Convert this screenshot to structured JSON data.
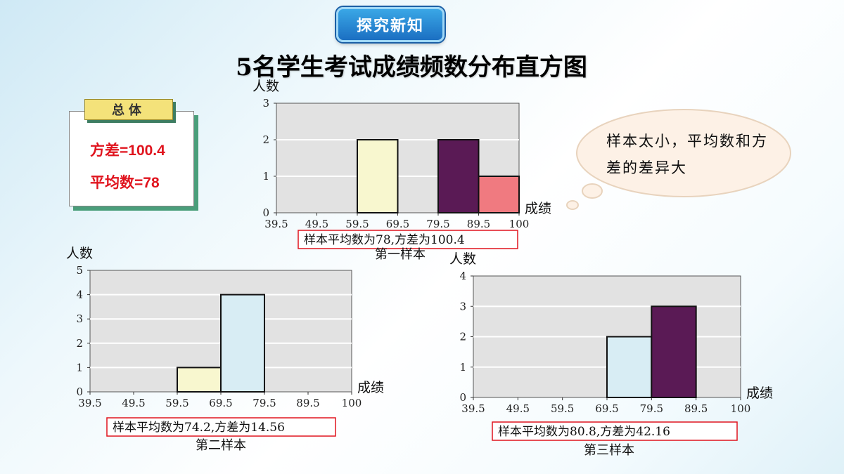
{
  "section_badge": "探究新知",
  "main_title": "5名学生考试成绩频数分布直方图",
  "population": {
    "tag": "总体",
    "variance": "方差=100.4",
    "mean": "平均数=78"
  },
  "bubble_text": "样本太小，平均数和方差的差异大",
  "colors": {
    "light_yellow": "#f8f7cf",
    "purple": "#5a1a55",
    "pink": "#f07a80",
    "light_blue": "#d8edf4",
    "grid_bg": "#e2e2e2",
    "stat_box_border": "#e0141e"
  },
  "chart_data": [
    {
      "type": "bar",
      "ylabel": "人数",
      "xlabel": "成绩",
      "x_ticks": [
        "39.5",
        "49.5",
        "59.5",
        "69.5",
        "79.5",
        "89.5",
        "100"
      ],
      "y_ticks": [
        "0",
        "1",
        "2",
        "3"
      ],
      "ylim": [
        0,
        3
      ],
      "values": [
        0,
        0,
        2,
        0,
        2,
        1
      ],
      "bar_colors": [
        "",
        "",
        "light_yellow",
        "",
        "purple",
        "pink"
      ],
      "stat_text": "样本平均数为78,方差为100.4",
      "caption": "第一样本"
    },
    {
      "type": "bar",
      "ylabel": "人数",
      "xlabel": "成绩",
      "x_ticks": [
        "39.5",
        "49.5",
        "59.5",
        "69.5",
        "79.5",
        "89.5",
        "100"
      ],
      "y_ticks": [
        "0",
        "1",
        "2",
        "3",
        "4",
        "5"
      ],
      "ylim": [
        0,
        5
      ],
      "values": [
        0,
        0,
        1,
        4,
        0,
        0
      ],
      "bar_colors": [
        "",
        "",
        "light_yellow",
        "light_blue",
        "",
        ""
      ],
      "stat_text": "样本平均数为74.2,方差为14.56",
      "caption": "第二样本"
    },
    {
      "type": "bar",
      "ylabel": "人数",
      "xlabel": "成绩",
      "x_ticks": [
        "39.5",
        "49.5",
        "59.5",
        "69.5",
        "79.5",
        "89.5",
        "100"
      ],
      "y_ticks": [
        "0",
        "1",
        "2",
        "3",
        "4"
      ],
      "ylim": [
        0,
        4
      ],
      "values": [
        0,
        0,
        0,
        2,
        3,
        0
      ],
      "bar_colors": [
        "",
        "",
        "",
        "light_blue",
        "purple",
        ""
      ],
      "stat_text": "样本平均数为80.8,方差为42.16",
      "caption": "第三样本"
    }
  ]
}
